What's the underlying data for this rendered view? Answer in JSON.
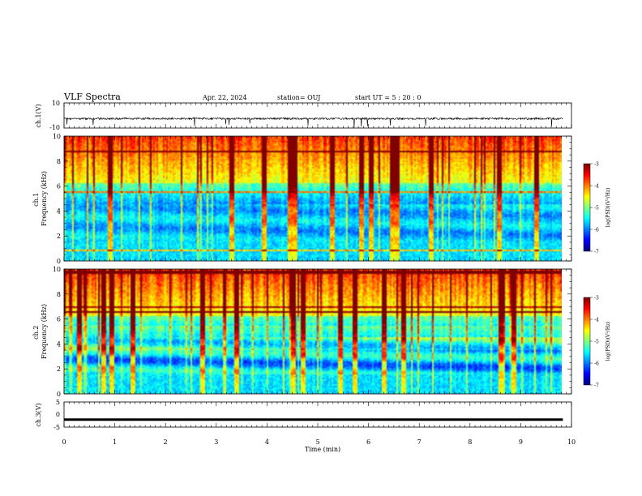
{
  "header": {
    "title": "VLF Spectra",
    "date": "Apr. 22, 2024",
    "station": "station= OUJ",
    "start": "start  UT =  5 : 20 : 0"
  },
  "chart_data": [
    {
      "type": "line",
      "panel": "ch1-waveform",
      "ylabel": "ch.1(V)",
      "ylim": [
        -10,
        10
      ],
      "y_tick_labels": [
        "10",
        "-10"
      ],
      "x_range_min": [
        0,
        9.83
      ],
      "baseline_v": -2.5,
      "noise_amplitude_v": 1.5,
      "color": "#000000"
    },
    {
      "type": "heatmap",
      "panel": "ch1-spectrogram",
      "ylabel": "ch.1\nFrequency (kHz)",
      "ylim": [
        0,
        10
      ],
      "y_ticks": [
        "0",
        "2",
        "4",
        "6",
        "8",
        "10"
      ],
      "x_range_min": [
        0,
        9.83
      ],
      "colorbar_label": "log(PSD)(V²/Hz)",
      "colorbar_ticks": [
        "-3",
        "-4",
        "-5",
        "-6",
        "-7"
      ],
      "colorbar_range": [
        -7,
        -3
      ]
    },
    {
      "type": "heatmap",
      "panel": "ch2-spectrogram",
      "ylabel": "ch.2\nFrequency (kHz)",
      "ylim": [
        0,
        10
      ],
      "y_ticks": [
        "0",
        "2",
        "4",
        "6",
        "8",
        "10"
      ],
      "x_range_min": [
        0,
        9.83
      ],
      "colorbar_label": "log(PSD)(V²/Hz)",
      "colorbar_ticks": [
        "-3",
        "-4",
        "-5",
        "-6",
        "-7"
      ],
      "colorbar_range": [
        -7,
        -3
      ]
    },
    {
      "type": "line",
      "panel": "ch3-waveform",
      "ylabel": "ch.3(V)",
      "ylim": [
        -5,
        5
      ],
      "y_tick_labels": [
        "5",
        "0",
        "-5"
      ],
      "x_range_min": [
        0,
        9.83
      ],
      "baseline_v": -2,
      "color": "#000000"
    }
  ],
  "x_axis": {
    "label": "Time (min)",
    "range": [
      0,
      10
    ],
    "ticks": [
      "0",
      "1",
      "2",
      "3",
      "4",
      "5",
      "6",
      "7",
      "8",
      "9",
      "10"
    ]
  }
}
